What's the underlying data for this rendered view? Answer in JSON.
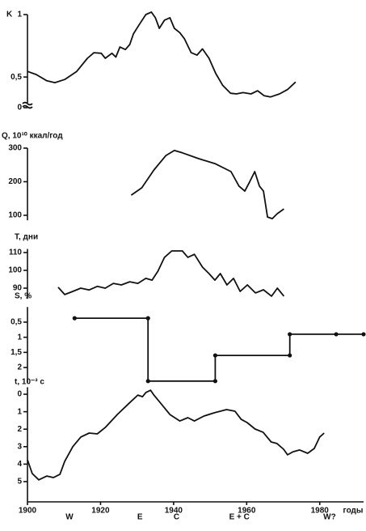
{
  "chart_data": [
    {
      "type": "line",
      "ylabel": "K",
      "color": "#111111",
      "xlim": [
        1900,
        1992
      ],
      "ylim": [
        0,
        1
      ],
      "y_break": [
        0,
        0.3
      ],
      "yticks": [
        1,
        {
          "value": 0.5,
          "label": "0,5"
        },
        0
      ],
      "x": [
        1900,
        1902.4,
        1905.3,
        1907.5,
        1910.2,
        1913.5,
        1916.4,
        1918.2,
        1920.2,
        1921.3,
        1923.1,
        1924.2,
        1925.3,
        1926.8,
        1928,
        1929,
        1930.6,
        1932.4,
        1933.9,
        1935,
        1936.1,
        1937.5,
        1939,
        1940.2,
        1941.7,
        1943,
        1944.8,
        1946.4,
        1947.9,
        1949.7,
        1951.5,
        1953.4,
        1955.6,
        1957.2,
        1959,
        1961.2,
        1963,
        1964.8,
        1966.5,
        1969,
        1971.2,
        1973.4
      ],
      "values": [
        0.545,
        0.52,
        0.47,
        0.455,
        0.48,
        0.545,
        0.65,
        0.695,
        0.69,
        0.65,
        0.69,
        0.66,
        0.74,
        0.72,
        0.76,
        0.845,
        0.92,
        1.0,
        1.02,
        0.975,
        0.89,
        0.955,
        0.975,
        0.89,
        0.855,
        0.805,
        0.695,
        0.675,
        0.725,
        0.65,
        0.53,
        0.435,
        0.37,
        0.365,
        0.375,
        0.365,
        0.39,
        0.35,
        0.34,
        0.365,
        0.4,
        0.46
      ]
    },
    {
      "type": "line",
      "ylabel": "Q, 10¹⁰ ккал/год",
      "color": "#111111",
      "xlim": [
        1900,
        1992
      ],
      "ylim": [
        85,
        300
      ],
      "yticks": [
        300,
        200,
        100
      ],
      "x": [
        1928.4,
        1931.3,
        1934.6,
        1937.9,
        1940.2,
        1942.4,
        1946.8,
        1951.3,
        1955.7,
        1957.9,
        1959.5,
        1960.8,
        1962.2,
        1963.5,
        1964.6,
        1965.7,
        1967,
        1968.4,
        1970.2
      ],
      "values": [
        160,
        182,
        235,
        278,
        293,
        286,
        269,
        254,
        230,
        187,
        172,
        199,
        230,
        187,
        172,
        95,
        90,
        105,
        119
      ]
    },
    {
      "type": "line",
      "ylabel": "T, дни",
      "color": "#111111",
      "xlim": [
        1900,
        1992
      ],
      "ylim": [
        84,
        112
      ],
      "yticks": [
        110,
        100,
        90
      ],
      "x": [
        1908.4,
        1910.2,
        1912.4,
        1914.6,
        1916.9,
        1919.1,
        1921.3,
        1923.5,
        1925.7,
        1928,
        1930.2,
        1932.4,
        1934.1,
        1935.7,
        1937.5,
        1939.5,
        1942.4,
        1943.9,
        1945.7,
        1947.9,
        1949.7,
        1951.3,
        1952.8,
        1954.6,
        1956.4,
        1958.2,
        1960.2,
        1962.4,
        1964.6,
        1966.8,
        1968.4,
        1970.2
      ],
      "values": [
        90.5,
        86.4,
        88.2,
        90,
        89,
        91,
        90,
        92.7,
        91.8,
        93.6,
        92.7,
        95.5,
        94.5,
        99.5,
        107.3,
        110.9,
        110.9,
        107.3,
        109,
        101.8,
        98.2,
        94.5,
        98.2,
        91.8,
        95.5,
        88.2,
        91.8,
        87.3,
        89.1,
        85.5,
        90,
        85.5
      ]
    },
    {
      "type": "line",
      "ylabel": "S, %",
      "color": "#111111",
      "xlim": [
        1900,
        1992
      ],
      "ylim": [
        0,
        2.5
      ],
      "y_inverted": true,
      "markers": true,
      "yticks": [
        {
          "value": 0.5,
          "label": "0,5"
        },
        1,
        {
          "value": 1.5,
          "label": "1,5"
        },
        2
      ],
      "x": [
        1912.9,
        1933,
        1933,
        1951.4,
        1951.4,
        1971.8,
        1971.8,
        1984.5,
        1992
      ],
      "values": [
        0.37,
        0.37,
        2.45,
        2.45,
        1.6,
        1.6,
        0.9,
        0.9,
        0.9
      ]
    },
    {
      "type": "line",
      "ylabel": "t, 10⁻³ c",
      "color": "#111111",
      "xlim": [
        1900,
        1992
      ],
      "ylim": [
        -0.4,
        6.15
      ],
      "y_inverted": true,
      "yticks": [
        0,
        1,
        2,
        3,
        4,
        5
      ],
      "xticks": [
        1900,
        1920,
        1940,
        1960,
        1980
      ],
      "xlabel": "годы",
      "x": [
        1900,
        1901.3,
        1903.1,
        1905.3,
        1907.1,
        1908.9,
        1910.2,
        1912.4,
        1914.6,
        1916.9,
        1919.1,
        1921.3,
        1924.6,
        1927.9,
        1930.2,
        1931.5,
        1932.4,
        1933.7,
        1934.6,
        1936.4,
        1939,
        1941.7,
        1943.9,
        1945.7,
        1948.3,
        1951.2,
        1954.5,
        1956.8,
        1958.5,
        1960.1,
        1962.3,
        1964.5,
        1966.7,
        1968.3,
        1970.1,
        1971.2,
        1972.7,
        1974.5,
        1976.7,
        1978.5,
        1980,
        1981.2
      ],
      "values": [
        3.75,
        4.54,
        4.9,
        4.68,
        4.77,
        4.58,
        3.84,
        3.0,
        2.45,
        2.22,
        2.27,
        1.9,
        1.16,
        0.5,
        0.05,
        0.14,
        -0.1,
        -0.23,
        0.05,
        0.5,
        1.16,
        1.53,
        1.34,
        1.53,
        1.25,
        1.06,
        0.88,
        0.97,
        1.44,
        1.62,
        1.99,
        2.18,
        2.73,
        2.82,
        3.15,
        3.47,
        3.29,
        3.19,
        3.38,
        3.1,
        2.45,
        2.22
      ],
      "annotations": [
        {
          "text": "W",
          "x": 1911.5
        },
        {
          "text": "E",
          "x": 1930.8
        },
        {
          "text": "C",
          "x": 1940.8
        },
        {
          "text": "E + C",
          "x": 1958
        },
        {
          "text": "W?",
          "x": 1982.7
        }
      ]
    }
  ]
}
